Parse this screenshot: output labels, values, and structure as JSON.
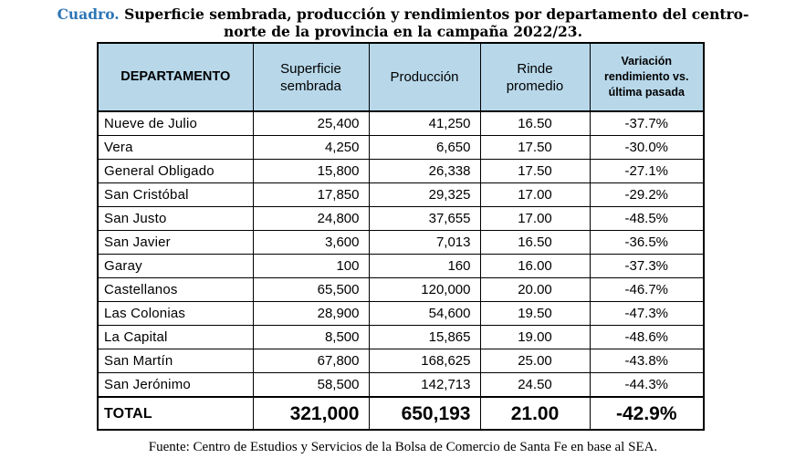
{
  "caption": {
    "label": "Cuadro.",
    "line1": "Superficie sembrada, producción y rendimientos por departamento del centro-",
    "line2": "norte de la provincia en la campaña 2022/23."
  },
  "table": {
    "headers": {
      "departamento": "DEPARTAMENTO",
      "superficie_l1": "Superficie",
      "superficie_l2": "sembrada",
      "produccion": "Producción",
      "rinde_l1": "Rinde",
      "rinde_l2": "promedio",
      "variacion_l1": "Variación",
      "variacion_l2": "rendimiento vs.",
      "variacion_l3": "última pasada"
    },
    "rows": [
      {
        "departamento": "Nueve de Julio",
        "superficie": "25,400",
        "produccion": "41,250",
        "rinde": "16.50",
        "variacion": "-37.7%"
      },
      {
        "departamento": "Vera",
        "superficie": "4,250",
        "produccion": "6,650",
        "rinde": "17.50",
        "variacion": "-30.0%"
      },
      {
        "departamento": "General Obligado",
        "superficie": "15,800",
        "produccion": "26,338",
        "rinde": "17.50",
        "variacion": "-27.1%"
      },
      {
        "departamento": "San Cristóbal",
        "superficie": "17,850",
        "produccion": "29,325",
        "rinde": "17.00",
        "variacion": "-29.2%"
      },
      {
        "departamento": "San Justo",
        "superficie": "24,800",
        "produccion": "37,655",
        "rinde": "17.00",
        "variacion": "-48.5%"
      },
      {
        "departamento": "San Javier",
        "superficie": "3,600",
        "produccion": "7,013",
        "rinde": "16.50",
        "variacion": "-36.5%"
      },
      {
        "departamento": "Garay",
        "superficie": "100",
        "produccion": "160",
        "rinde": "16.00",
        "variacion": "-37.3%"
      },
      {
        "departamento": "Castellanos",
        "superficie": "65,500",
        "produccion": "120,000",
        "rinde": "20.00",
        "variacion": "-46.7%"
      },
      {
        "departamento": "Las Colonias",
        "superficie": "28,900",
        "produccion": "54,600",
        "rinde": "19.50",
        "variacion": "-47.3%"
      },
      {
        "departamento": "La Capital",
        "superficie": "8,500",
        "produccion": "15,865",
        "rinde": "19.00",
        "variacion": "-48.6%"
      },
      {
        "departamento": "San Martín",
        "superficie": "67,800",
        "produccion": "168,625",
        "rinde": "25.00",
        "variacion": "-43.8%"
      },
      {
        "departamento": "San Jerónimo",
        "superficie": "58,500",
        "produccion": "142,713",
        "rinde": "24.50",
        "variacion": "-44.3%"
      }
    ],
    "total": {
      "departamento": "TOTAL",
      "superficie": "321,000",
      "produccion": "650,193",
      "rinde": "21.00",
      "variacion": "-42.9%"
    },
    "header_color": "#b8d8ea"
  },
  "source": "Fuente: Centro de Estudios y Servicios de la Bolsa de Comercio de Santa Fe en base al SEA.",
  "colors": {
    "caption_label": "#2e75b6"
  }
}
